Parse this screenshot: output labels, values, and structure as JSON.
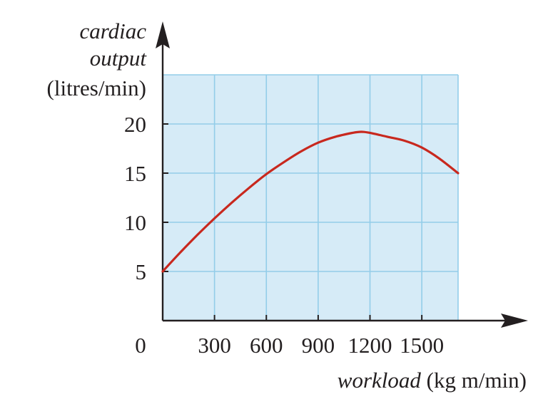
{
  "chart_data": {
    "type": "line",
    "ylabel_lines": [
      "cardiac",
      "output",
      "(litres/min)"
    ],
    "xlabel_italic": "workload",
    "xlabel_unit": " (kg m/min)",
    "origin_label": "0",
    "xticks": [
      300,
      600,
      900,
      1200,
      1500
    ],
    "yticks": [
      5,
      10,
      15,
      20
    ],
    "xlim": [
      0,
      1710
    ],
    "ylim": [
      0,
      25
    ],
    "grid": true,
    "colors": {
      "curve": "#c8281e",
      "plot_bg": "#d6ebf7",
      "grid": "#93cde9",
      "axis": "#231f20"
    },
    "series": [
      {
        "x": [
          0,
          100,
          200,
          300,
          400,
          500,
          600,
          700,
          800,
          900,
          1000,
          1100,
          1150,
          1200,
          1300,
          1400,
          1500,
          1600,
          1710
        ],
        "y": [
          5.0,
          6.9,
          8.7,
          10.4,
          12.0,
          13.5,
          14.9,
          16.1,
          17.2,
          18.1,
          18.7,
          19.1,
          19.2,
          19.1,
          18.7,
          18.3,
          17.6,
          16.5,
          15.0
        ]
      }
    ]
  }
}
